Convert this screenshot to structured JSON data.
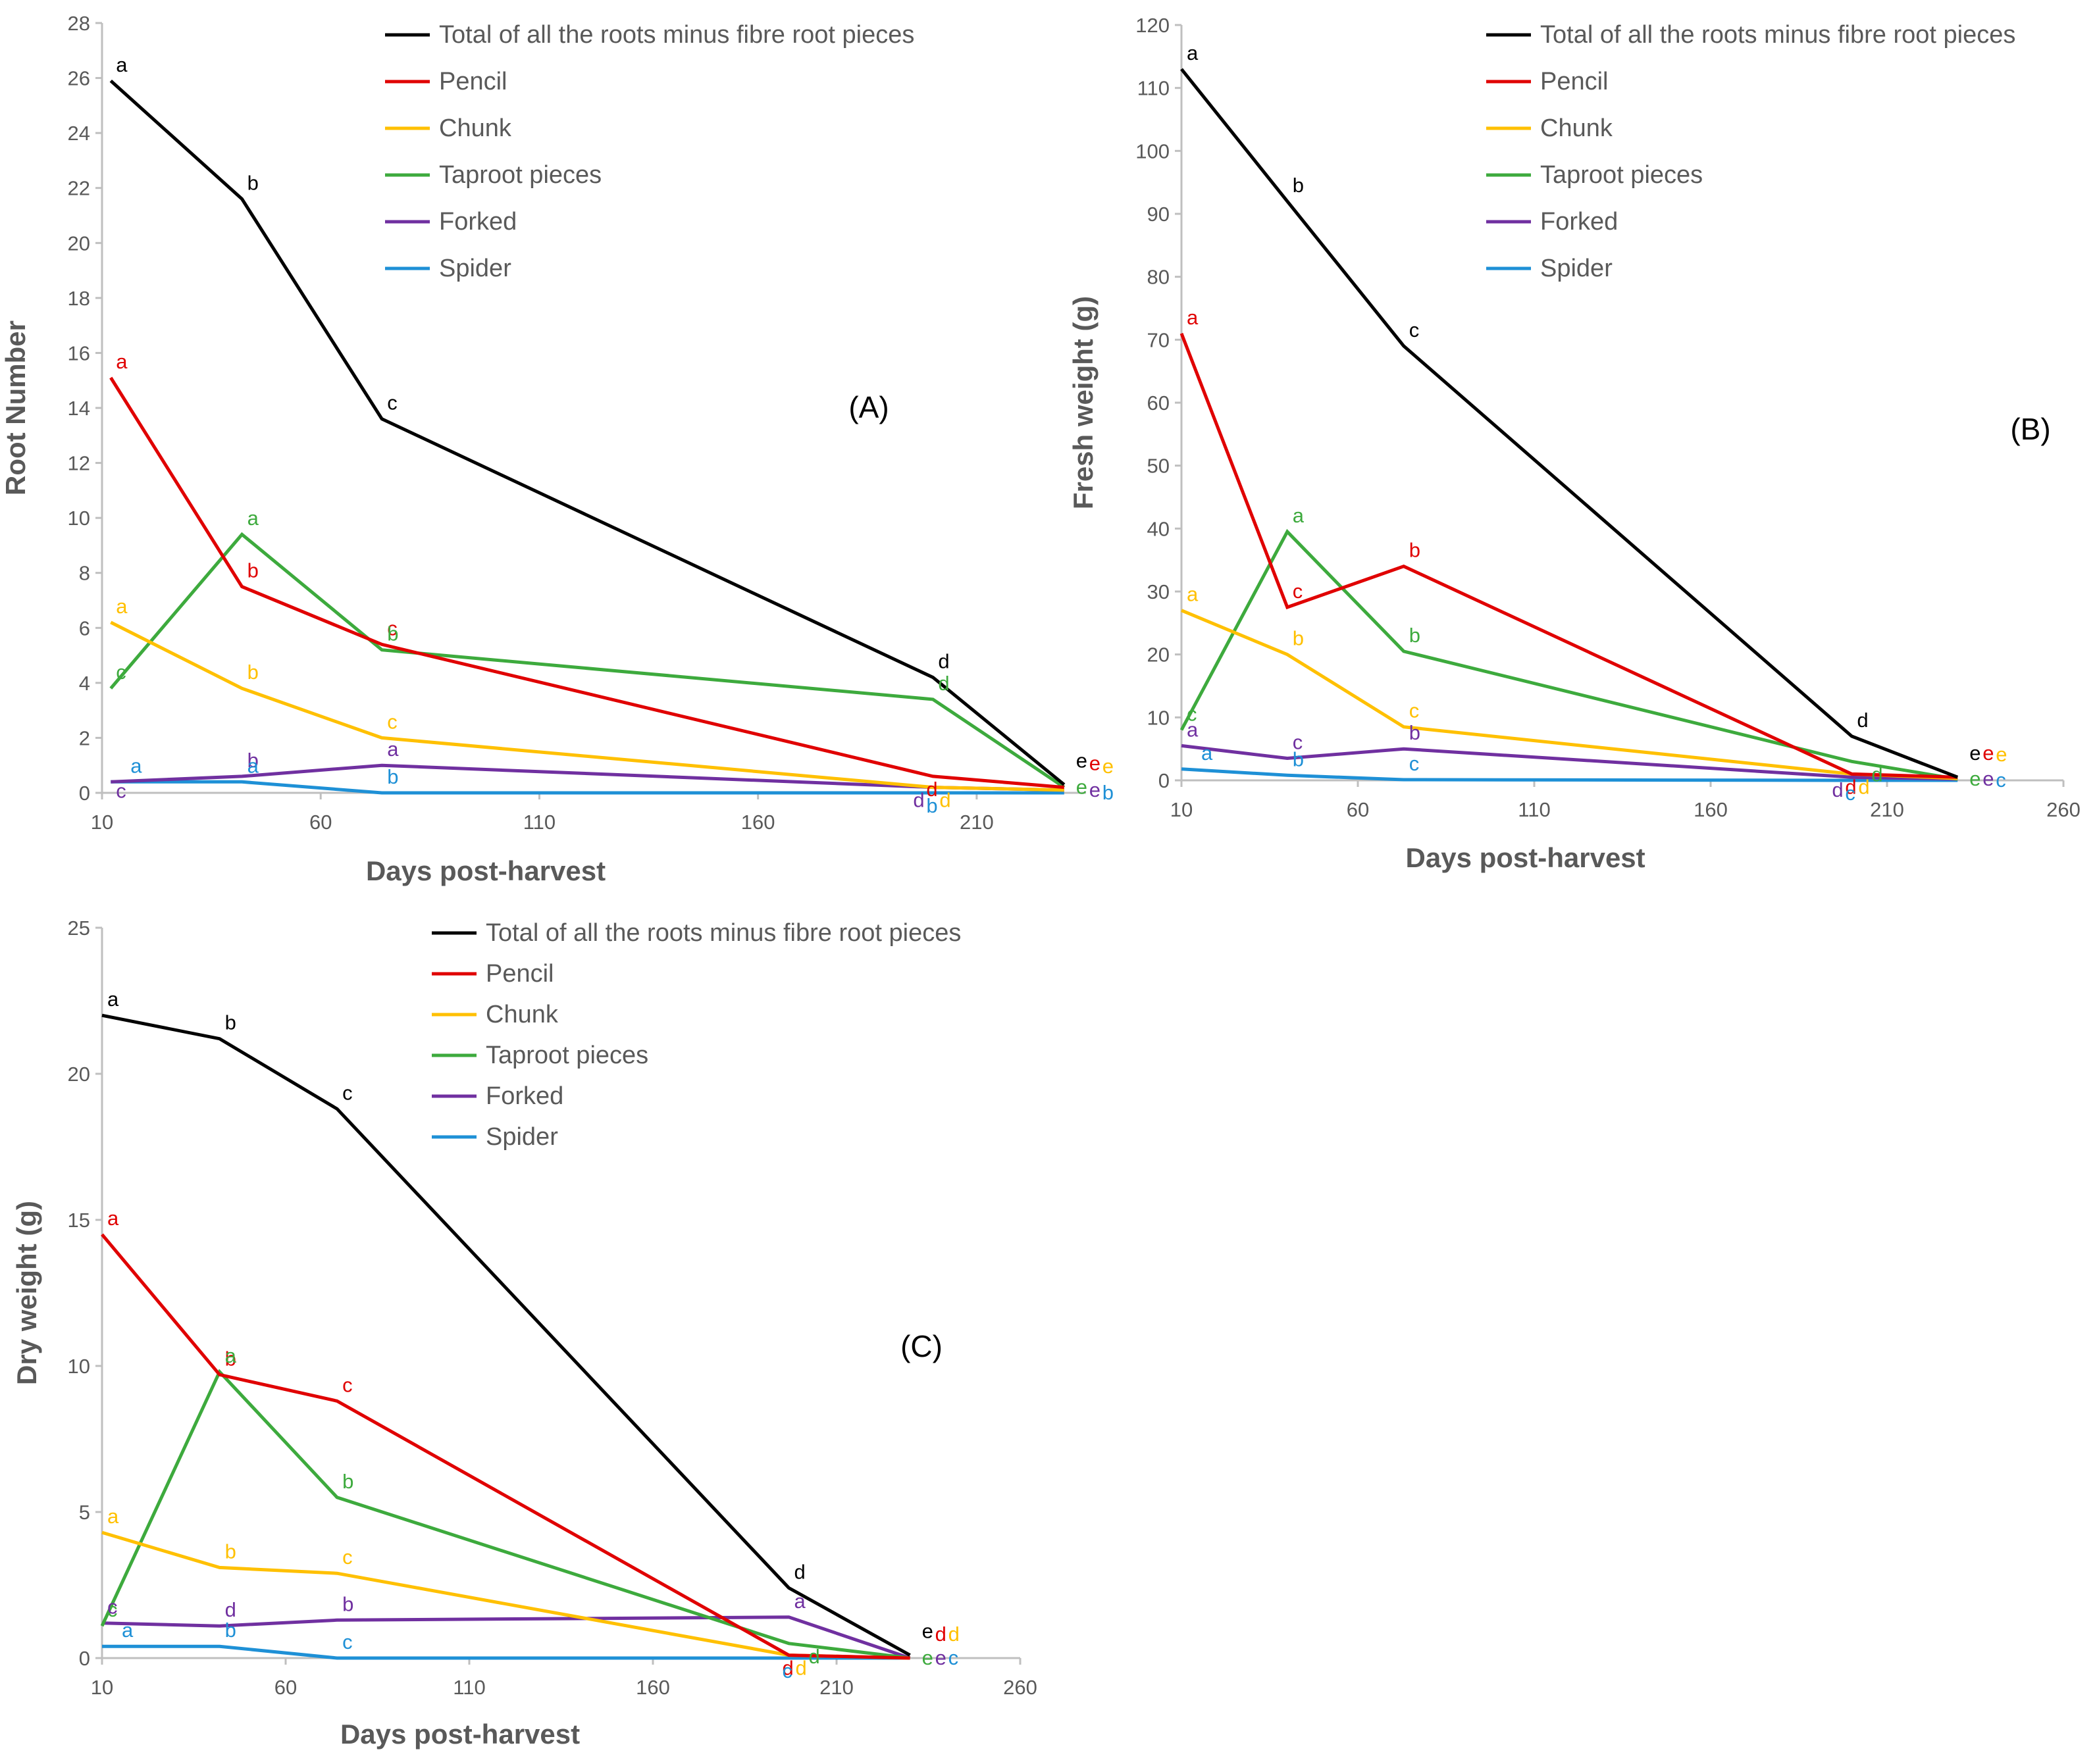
{
  "colors": {
    "total": "#000000",
    "pencil": "#e00000",
    "chunk": "#ffc000",
    "taproot": "#3daa3d",
    "forked": "#7030a0",
    "spider": "#1e90d6",
    "axis": "#bfbfbf",
    "text": "#595959"
  },
  "chart_data": [
    {
      "type": "line",
      "panel_label": "(A)",
      "xlabel": "Days post-harvest",
      "ylabel": "Root Number",
      "xlim": [
        10,
        235
      ],
      "xticks": [
        "10",
        "60",
        "110",
        "160",
        "210"
      ],
      "ylim": [
        0,
        28
      ],
      "yticks": [
        "0",
        "2",
        "4",
        "6",
        "8",
        "10",
        "12",
        "14",
        "16",
        "18",
        "20",
        "22",
        "24",
        "26",
        "28"
      ],
      "x": [
        12,
        42,
        74,
        200,
        230
      ],
      "series": [
        {
          "name": "Total of all the roots minus fibre root pieces",
          "key": "total",
          "values": [
            25.9,
            21.6,
            13.6,
            4.2,
            0.3
          ],
          "letters": [
            "a",
            "b",
            "c",
            "d",
            "e"
          ]
        },
        {
          "name": "Pencil",
          "key": "pencil",
          "values": [
            15.1,
            7.5,
            5.4,
            0.6,
            0.2
          ],
          "letters": [
            "a",
            "b",
            "c",
            "d",
            "e"
          ]
        },
        {
          "name": "Chunk",
          "key": "chunk",
          "values": [
            6.2,
            3.8,
            2.0,
            0.2,
            0.1
          ],
          "letters": [
            "a",
            "b",
            "c",
            "d",
            "e"
          ]
        },
        {
          "name": "Taproot pieces",
          "key": "taproot",
          "values": [
            3.8,
            9.4,
            5.2,
            3.4,
            0.2
          ],
          "letters": [
            "c",
            "a",
            "b",
            "d",
            "e"
          ]
        },
        {
          "name": "Forked",
          "key": "forked",
          "values": [
            0.4,
            0.6,
            1.0,
            0.2,
            0.1
          ],
          "letters": [
            "c",
            "b",
            "a",
            "d",
            "e"
          ]
        },
        {
          "name": "Spider",
          "key": "spider",
          "values": [
            0.4,
            0.4,
            0.0,
            0.0,
            0.0
          ],
          "letters": [
            "a",
            "a",
            "b",
            "b",
            "b"
          ]
        }
      ]
    },
    {
      "type": "line",
      "panel_label": "(B)",
      "xlabel": "Days post-harvest",
      "ylabel": "Fresh weight (g)",
      "xlim": [
        10,
        260
      ],
      "xticks": [
        "10",
        "60",
        "110",
        "160",
        "210",
        "260"
      ],
      "ylim": [
        0,
        120
      ],
      "yticks": [
        "0",
        "10",
        "20",
        "30",
        "40",
        "50",
        "60",
        "70",
        "80",
        "90",
        "100",
        "110",
        "120"
      ],
      "x": [
        10,
        40,
        73,
        200,
        230
      ],
      "series": [
        {
          "name": "Total of all the roots minus fibre root pieces",
          "key": "total",
          "values": [
            113,
            92,
            69,
            7,
            0.5
          ],
          "letters": [
            "a",
            "b",
            "c",
            "d",
            "e"
          ]
        },
        {
          "name": "Pencil",
          "key": "pencil",
          "values": [
            71,
            27.5,
            34,
            1,
            0.5
          ],
          "letters": [
            "a",
            "c",
            "b",
            "d",
            "e"
          ]
        },
        {
          "name": "Chunk",
          "key": "chunk",
          "values": [
            27,
            20,
            8.5,
            1,
            0.3
          ],
          "letters": [
            "a",
            "b",
            "c",
            "d",
            "e"
          ]
        },
        {
          "name": "Taproot pieces",
          "key": "taproot",
          "values": [
            8,
            39.5,
            20.5,
            3,
            0.2
          ],
          "letters": [
            "c",
            "a",
            "b",
            "d",
            "e"
          ]
        },
        {
          "name": "Forked",
          "key": "forked",
          "values": [
            5.5,
            3.5,
            5,
            0.5,
            0.2
          ],
          "letters": [
            "a",
            "c",
            "b",
            "d",
            "e"
          ]
        },
        {
          "name": "Spider",
          "key": "spider",
          "values": [
            1.8,
            0.8,
            0.1,
            0.0,
            0.0
          ],
          "letters": [
            "a",
            "b",
            "c",
            "c",
            "c"
          ]
        }
      ]
    },
    {
      "type": "line",
      "panel_label": "(C)",
      "xlabel": "Days post-harvest",
      "ylabel": "Dry weight (g)",
      "xlim": [
        10,
        260
      ],
      "xticks": [
        "10",
        "60",
        "110",
        "160",
        "210",
        "260"
      ],
      "ylim": [
        0,
        25
      ],
      "yticks": [
        "0",
        "5",
        "10",
        "15",
        "20",
        "25"
      ],
      "x": [
        10,
        42,
        74,
        197,
        230
      ],
      "series": [
        {
          "name": "Total of all the roots minus fibre root pieces",
          "key": "total",
          "values": [
            22,
            21.2,
            18.8,
            2.4,
            0.1
          ],
          "letters": [
            "a",
            "b",
            "c",
            "d",
            "e"
          ]
        },
        {
          "name": "Pencil",
          "key": "pencil",
          "values": [
            14.5,
            9.7,
            8.8,
            0.1,
            0.0
          ],
          "letters": [
            "a",
            "b",
            "c",
            "d",
            "d"
          ]
        },
        {
          "name": "Chunk",
          "key": "chunk",
          "values": [
            4.3,
            3.1,
            2.9,
            0.1,
            0.0
          ],
          "letters": [
            "a",
            "b",
            "c",
            "d",
            "d"
          ]
        },
        {
          "name": "Taproot pieces",
          "key": "taproot",
          "values": [
            1.1,
            9.8,
            5.5,
            0.5,
            0.0
          ],
          "letters": [
            "c",
            "a",
            "b",
            "d",
            "e"
          ]
        },
        {
          "name": "Forked",
          "key": "forked",
          "values": [
            1.2,
            1.1,
            1.3,
            1.4,
            0.0
          ],
          "letters": [
            "c",
            "d",
            "b",
            "a",
            "e"
          ]
        },
        {
          "name": "Spider",
          "key": "spider",
          "values": [
            0.4,
            0.4,
            0.0,
            0.0,
            0.0
          ],
          "letters": [
            "a",
            "b",
            "c",
            "c",
            "c"
          ]
        }
      ]
    }
  ]
}
